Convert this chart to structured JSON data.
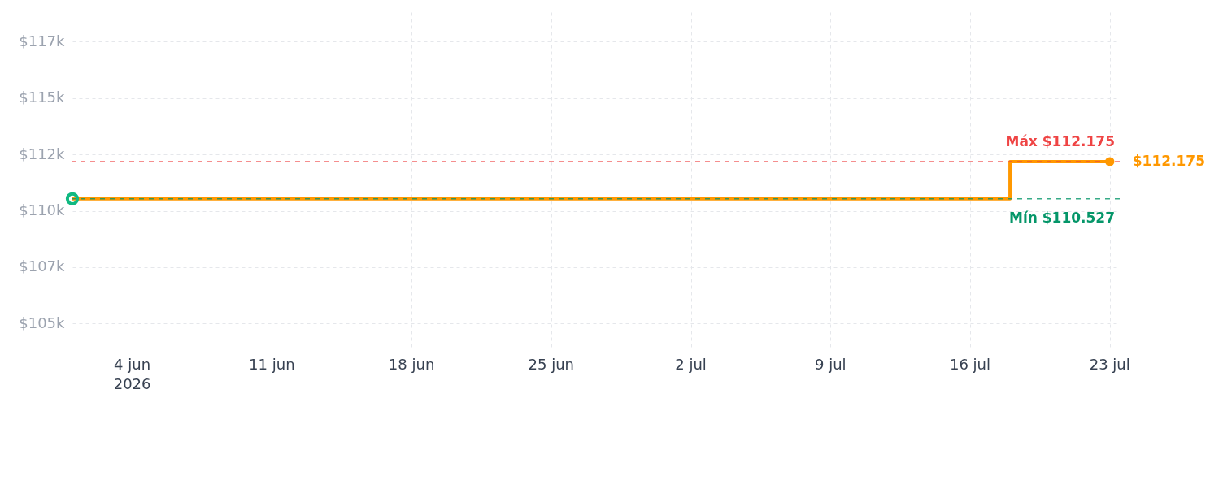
{
  "chart_data": {
    "type": "step",
    "x": [
      "2026-06-01",
      "2026-07-18",
      "2026-07-23"
    ],
    "series": [
      {
        "color": "#ff9800",
        "values": [
          110527,
          112175,
          112175
        ],
        "marker": "none"
      },
      {
        "type": "scatter",
        "color": "#10b981",
        "x": [
          "2026-06-01"
        ],
        "values": [
          110527
        ],
        "marker": "circle"
      },
      {
        "type": "scatter",
        "color": "#ff9800",
        "x": [
          "2026-07-23"
        ],
        "values": [
          112175
        ],
        "marker": "circle"
      }
    ],
    "xlim": [
      "2026-06-01",
      "2026-07-23T12:00"
    ],
    "xticks": [
      {
        "value": "2026-06-04",
        "label": "4 jun\n2026"
      },
      {
        "value": "2026-06-11",
        "label": "11 jun"
      },
      {
        "value": "2026-06-18",
        "label": "18 jun"
      },
      {
        "value": "2026-06-25",
        "label": "25 jun"
      },
      {
        "value": "2026-07-02",
        "label": "2 jul"
      },
      {
        "value": "2026-07-09",
        "label": "9 jul"
      },
      {
        "value": "2026-07-16",
        "label": "16 jul"
      },
      {
        "value": "2026-07-23",
        "label": "23 jul"
      }
    ],
    "ylim": [
      103900,
      118800
    ],
    "yticks": [
      {
        "value": 105000,
        "label": "$105k"
      },
      {
        "value": 107500,
        "label": "$107k"
      },
      {
        "value": 110000,
        "label": "$110k"
      },
      {
        "value": 112500,
        "label": "$112k"
      },
      {
        "value": 115000,
        "label": "$115k"
      },
      {
        "value": 117500,
        "label": "$117k"
      }
    ],
    "ref_lines": [
      {
        "axis": "y",
        "value": 112175,
        "label": "Máx $112.175",
        "color": "#ef4444",
        "line_style": "dashed"
      },
      {
        "axis": "y",
        "value": 110527,
        "label": "Mín $110.527",
        "color": "#059669",
        "line_style": "dashed"
      }
    ],
    "annotations": [
      {
        "text": "$112.175",
        "x": "2026-07-23",
        "y": 112175
      }
    ],
    "grid": true
  }
}
